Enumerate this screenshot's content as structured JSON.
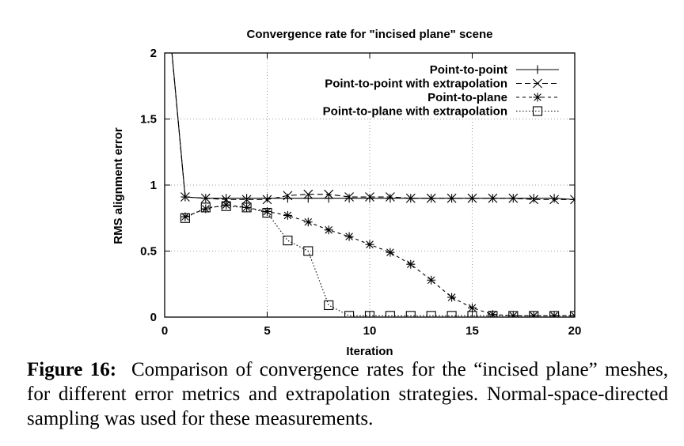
{
  "chart_data": {
    "type": "line",
    "title": "Convergence rate for \"incised plane\" scene",
    "xlabel": "Iteration",
    "ylabel": "RMS alignment error",
    "xlim": [
      0,
      20
    ],
    "ylim": [
      0,
      2
    ],
    "x_ticks": [
      "0",
      "5",
      "10",
      "15",
      "20"
    ],
    "y_ticks": [
      "0",
      "0.5",
      "1",
      "1.5",
      "2"
    ],
    "grid": true,
    "legend_position": "top-right",
    "series": [
      {
        "name": "Point-to-point",
        "marker": "plus",
        "dash": "solid",
        "x": [
          0,
          1,
          2,
          3,
          4,
          5,
          6,
          7,
          8,
          9,
          10,
          11,
          12,
          13,
          14,
          15,
          16,
          17,
          18,
          19,
          20
        ],
        "y": [
          2.6,
          0.91,
          0.9,
          0.9,
          0.9,
          0.9,
          0.9,
          0.9,
          0.9,
          0.9,
          0.9,
          0.9,
          0.9,
          0.9,
          0.9,
          0.9,
          0.9,
          0.9,
          0.9,
          0.9,
          0.89
        ]
      },
      {
        "name": "Point-to-point with extrapolation",
        "marker": "cross",
        "dash": "dashed",
        "x": [
          0,
          1,
          2,
          3,
          4,
          5,
          6,
          7,
          8,
          9,
          10,
          11,
          12,
          13,
          14,
          15,
          16,
          17,
          18,
          19,
          20
        ],
        "y": [
          2.6,
          0.91,
          0.9,
          0.89,
          0.89,
          0.89,
          0.92,
          0.93,
          0.93,
          0.91,
          0.91,
          0.91,
          0.9,
          0.9,
          0.9,
          0.9,
          0.9,
          0.9,
          0.89,
          0.89,
          0.89
        ]
      },
      {
        "name": "Point-to-plane",
        "marker": "star",
        "dash": "short-dash",
        "x": [
          1,
          2,
          3,
          4,
          5,
          6,
          7,
          8,
          9,
          10,
          11,
          12,
          13,
          14,
          15,
          16,
          17,
          18,
          19,
          20
        ],
        "y": [
          0.76,
          0.82,
          0.85,
          0.83,
          0.8,
          0.77,
          0.72,
          0.66,
          0.61,
          0.55,
          0.49,
          0.4,
          0.28,
          0.15,
          0.07,
          0.02,
          0.01,
          0.01,
          0.01,
          0.01
        ]
      },
      {
        "name": "Point-to-plane with extrapolation",
        "marker": "square",
        "dash": "dotted",
        "x": [
          1,
          2,
          3,
          4,
          5,
          6,
          7,
          8,
          9,
          10,
          11,
          12,
          13,
          14,
          15,
          16,
          17,
          18,
          19,
          20
        ],
        "y": [
          0.75,
          0.83,
          0.84,
          0.83,
          0.79,
          0.58,
          0.5,
          0.09,
          0.01,
          0.01,
          0.01,
          0.01,
          0.01,
          0.01,
          0.01,
          0.01,
          0.01,
          0.01,
          0.01,
          0.01
        ]
      }
    ]
  },
  "caption": {
    "label": "Figure 16:",
    "text": "Comparison of convergence rates for the “incised plane” meshes, for different error metrics and extrapolation strategies. Normal-space-directed sampling was used for these measurements."
  }
}
